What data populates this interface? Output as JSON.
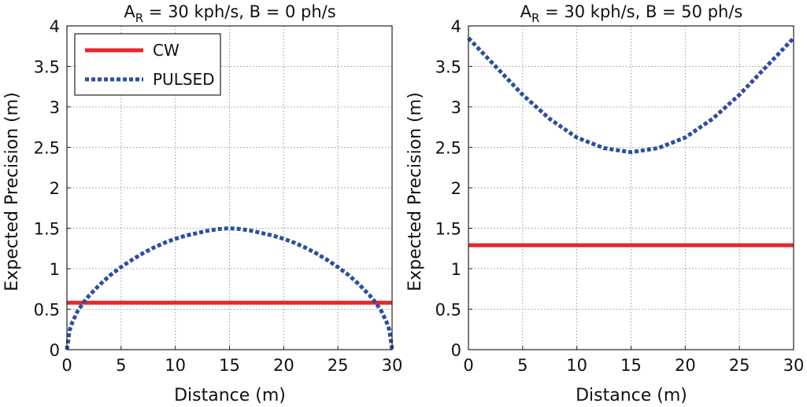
{
  "chart_data": [
    {
      "type": "line",
      "title": {
        "main": "A",
        "sub": "R",
        "rest": " = 30 kph/s, B = 0 ph/s"
      },
      "xlabel": "Distance (m)",
      "ylabel": "Expected Precision (m)",
      "xlim": [
        0,
        30
      ],
      "ylim": [
        0,
        4
      ],
      "xticks": [
        "0",
        "5",
        "10",
        "15",
        "20",
        "25",
        "30"
      ],
      "yticks": [
        "0",
        "0.5",
        "1",
        "1.5",
        "2",
        "2.5",
        "3",
        "3.5",
        "4"
      ],
      "grid": true,
      "legend": {
        "position": "top-left",
        "entries": [
          "CW",
          "PULSED"
        ]
      },
      "series": [
        {
          "name": "CW",
          "color": "#e8262b",
          "style": "solid",
          "x": [
            0,
            30
          ],
          "y": [
            0.58,
            0.58
          ]
        },
        {
          "name": "PULSED",
          "color": "#2b4ea3",
          "style": "dotted",
          "x": [
            0,
            0.25,
            0.5,
            1,
            1.5,
            2,
            3,
            4,
            5,
            6,
            7,
            8,
            9,
            10,
            11,
            12,
            13,
            14,
            15,
            16,
            17,
            18,
            19,
            20,
            21,
            22,
            23,
            24,
            25,
            26,
            27,
            28,
            28.5,
            29,
            29.5,
            29.75,
            30
          ],
          "y": [
            0,
            0.24,
            0.34,
            0.48,
            0.58,
            0.66,
            0.8,
            0.92,
            1.02,
            1.11,
            1.19,
            1.26,
            1.32,
            1.37,
            1.41,
            1.44,
            1.47,
            1.49,
            1.5,
            1.49,
            1.47,
            1.44,
            1.41,
            1.37,
            1.32,
            1.26,
            1.19,
            1.11,
            1.02,
            0.92,
            0.8,
            0.66,
            0.58,
            0.48,
            0.34,
            0.24,
            0
          ]
        }
      ]
    },
    {
      "type": "line",
      "title": {
        "main": "A",
        "sub": "R",
        "rest": " = 30 kph/s, B = 50 ph/s"
      },
      "xlabel": "Distance (m)",
      "ylabel": "Expected Precision (m)",
      "xlim": [
        0,
        30
      ],
      "ylim": [
        0,
        4
      ],
      "xticks": [
        "0",
        "5",
        "10",
        "15",
        "20",
        "25",
        "30"
      ],
      "yticks": [
        "0",
        "0.5",
        "1",
        "1.5",
        "2",
        "2.5",
        "3",
        "3.5",
        "4"
      ],
      "grid": true,
      "series": [
        {
          "name": "CW",
          "color": "#e8262b",
          "style": "solid",
          "x": [
            0,
            30
          ],
          "y": [
            1.29,
            1.29
          ]
        },
        {
          "name": "PULSED",
          "color": "#2b4ea3",
          "style": "dotted",
          "x": [
            0,
            2.5,
            5,
            7.5,
            10,
            12.5,
            15,
            17.5,
            20,
            22.5,
            25,
            27.5,
            30
          ],
          "y": [
            3.85,
            3.5,
            3.15,
            2.85,
            2.62,
            2.49,
            2.44,
            2.49,
            2.62,
            2.85,
            3.15,
            3.5,
            3.85
          ]
        }
      ]
    }
  ]
}
